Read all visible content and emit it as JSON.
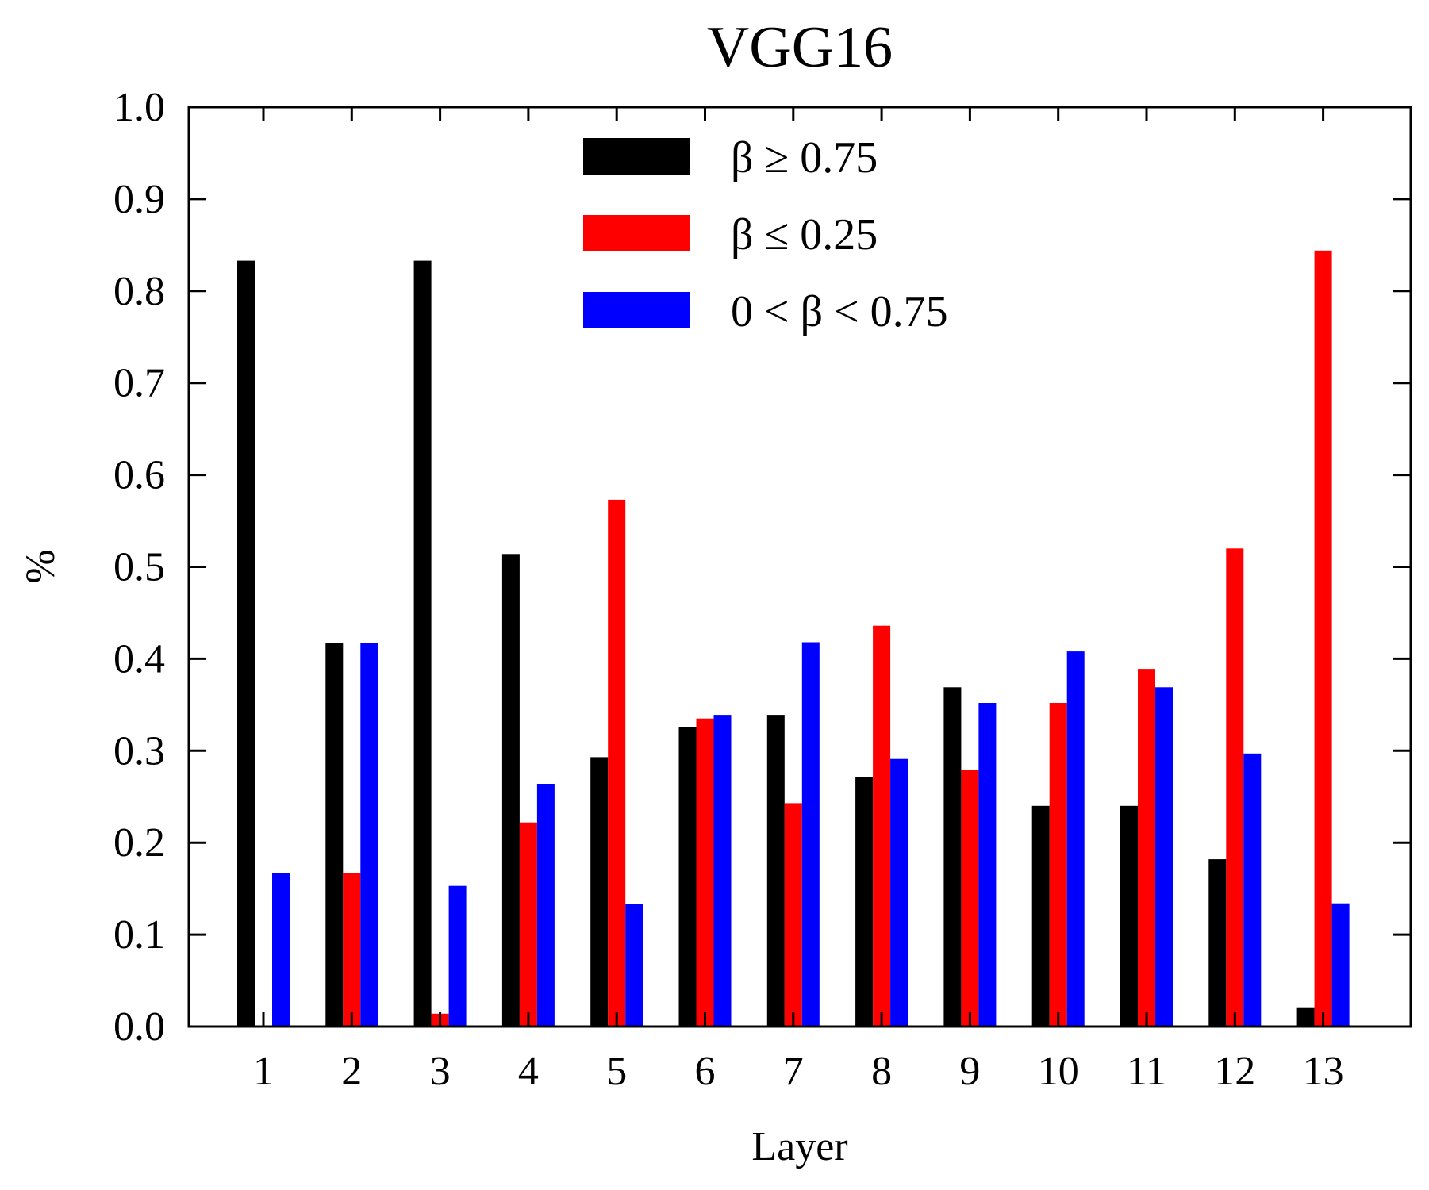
{
  "chart_data": {
    "type": "bar",
    "title": "VGG16",
    "xlabel": "Layer",
    "ylabel": "%",
    "ylim": [
      0,
      1.0
    ],
    "yticks": [
      "0.0",
      "0.1",
      "0.2",
      "0.3",
      "0.4",
      "0.5",
      "0.6",
      "0.7",
      "0.8",
      "0.9",
      "1.0"
    ],
    "categories": [
      "1",
      "2",
      "3",
      "4",
      "5",
      "6",
      "7",
      "8",
      "9",
      "10",
      "11",
      "12",
      "13"
    ],
    "legend_position": "top-center",
    "grid": false,
    "series": [
      {
        "name": "β ≥ 0.75",
        "color": "#000000",
        "values": [
          0.833,
          0.417,
          0.833,
          0.514,
          0.293,
          0.326,
          0.339,
          0.271,
          0.369,
          0.24,
          0.24,
          0.182,
          0.021
        ]
      },
      {
        "name": "β ≤ 0.25",
        "color": "#ff0000",
        "values": [
          0.0,
          0.167,
          0.014,
          0.222,
          0.573,
          0.335,
          0.243,
          0.436,
          0.279,
          0.352,
          0.389,
          0.52,
          0.844
        ]
      },
      {
        "name": "0 < β < 0.75",
        "color": "#0000ff",
        "values": [
          0.167,
          0.417,
          0.153,
          0.264,
          0.133,
          0.339,
          0.418,
          0.291,
          0.352,
          0.408,
          0.369,
          0.297,
          0.134
        ]
      }
    ]
  }
}
